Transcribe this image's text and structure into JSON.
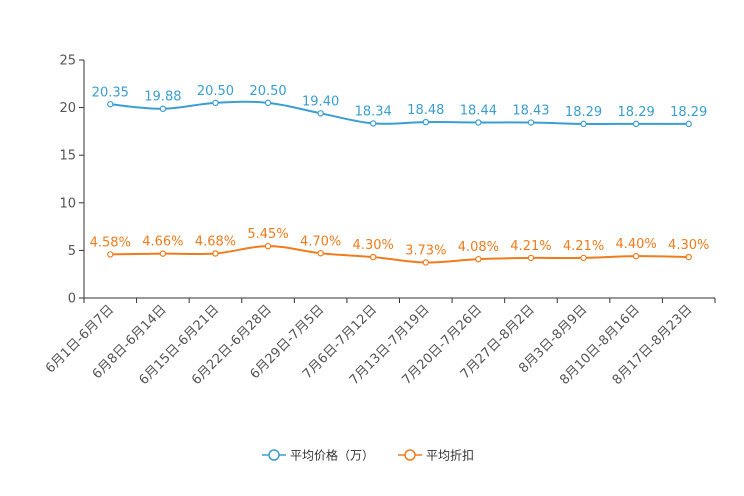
{
  "chart_data": {
    "type": "line",
    "categories": [
      "6月1日-6月7日",
      "6月8日-6月14日",
      "6月15日-6月21日",
      "6月22日-6月28日",
      "6月29日-7月5日",
      "7月6日-7月12日",
      "7月13日-7月19日",
      "7月20日-7月26日",
      "7月27日-8月2日",
      "8月3日-8月9日",
      "8月10日-8月16日",
      "8月17日-8月23日"
    ],
    "series": [
      {
        "name": "平均价格（万）",
        "color": "#3a9fd0",
        "values": [
          20.35,
          19.88,
          20.5,
          20.5,
          19.4,
          18.34,
          18.48,
          18.44,
          18.43,
          18.29,
          18.29,
          18.29
        ],
        "labels": [
          "20.35",
          "19.88",
          "20.50",
          "20.50",
          "19.40",
          "18.34",
          "18.48",
          "18.44",
          "18.43",
          "18.29",
          "18.29",
          "18.29"
        ]
      },
      {
        "name": "平均折扣",
        "color": "#f07c1e",
        "values": [
          4.58,
          4.66,
          4.68,
          5.45,
          4.7,
          4.3,
          3.73,
          4.08,
          4.21,
          4.21,
          4.4,
          4.3
        ],
        "labels": [
          "4.58%",
          "4.66%",
          "4.68%",
          "5.45%",
          "4.70%",
          "4.30%",
          "3.73%",
          "4.08%",
          "4.21%",
          "4.21%",
          "4.40%",
          "4.30%"
        ]
      }
    ],
    "yticks": [
      0,
      5,
      10,
      15,
      20,
      25
    ],
    "ylim": [
      0,
      25
    ],
    "title": "",
    "xlabel": "",
    "ylabel": "",
    "legend": "bottom-center",
    "grid": false
  }
}
